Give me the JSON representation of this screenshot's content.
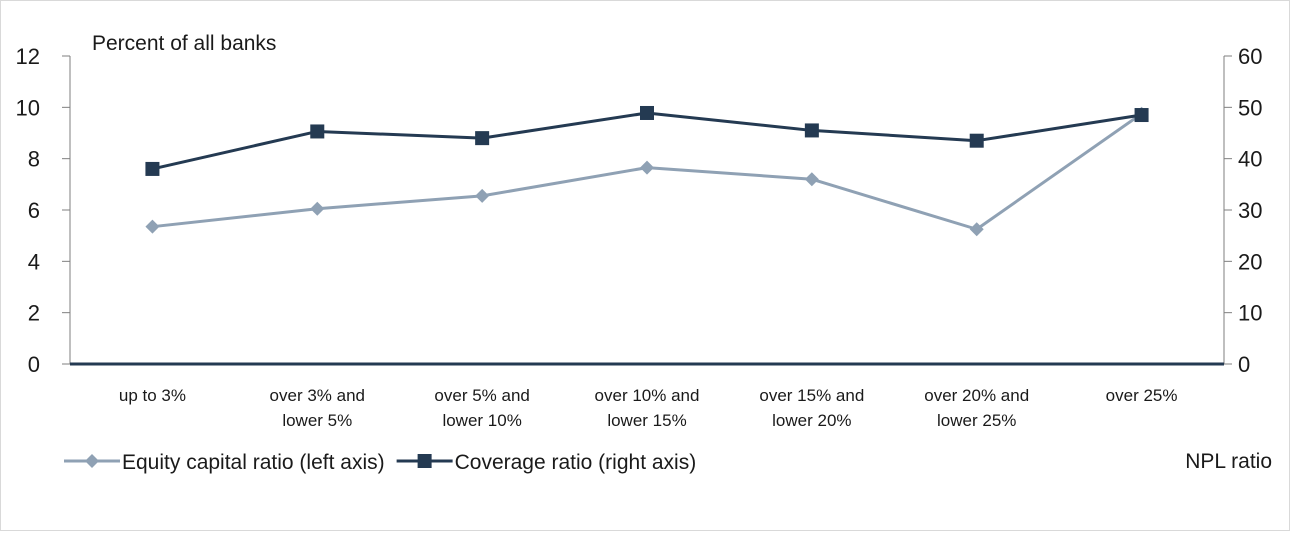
{
  "chart_data": {
    "type": "line",
    "left_axis_label": "Percent of all banks",
    "xlabel": "NPL ratio",
    "categories": [
      [
        "up to 3%"
      ],
      [
        "over 3% and",
        "lower 5%"
      ],
      [
        "over 5% and",
        "lower 10%"
      ],
      [
        "over 10% and",
        "lower 15%"
      ],
      [
        "over 15% and",
        "lower 20%"
      ],
      [
        "over 20% and",
        "lower 25%"
      ],
      [
        "over 25%"
      ]
    ],
    "left_axis": {
      "ylim": [
        0,
        12
      ],
      "ticks": [
        "0",
        "2",
        "4",
        "6",
        "8",
        "10",
        "12"
      ]
    },
    "right_axis": {
      "ylim": [
        0,
        60
      ],
      "ticks": [
        "0",
        "10",
        "20",
        "30",
        "40",
        "50",
        "60"
      ]
    },
    "series": [
      {
        "name": "Equity capital ratio (left axis)",
        "axis": "left",
        "marker": "diamond",
        "color": "#8fa1b4",
        "values": [
          5.35,
          6.05,
          6.55,
          7.65,
          7.2,
          5.25,
          9.75
        ]
      },
      {
        "name": "Coverage ratio (right axis)",
        "axis": "right",
        "marker": "square",
        "color": "#243a52",
        "values": [
          38.0,
          45.3,
          44.0,
          48.9,
          45.5,
          43.5,
          48.5
        ]
      }
    ],
    "grid": false,
    "legend_position": "bottom-left"
  }
}
